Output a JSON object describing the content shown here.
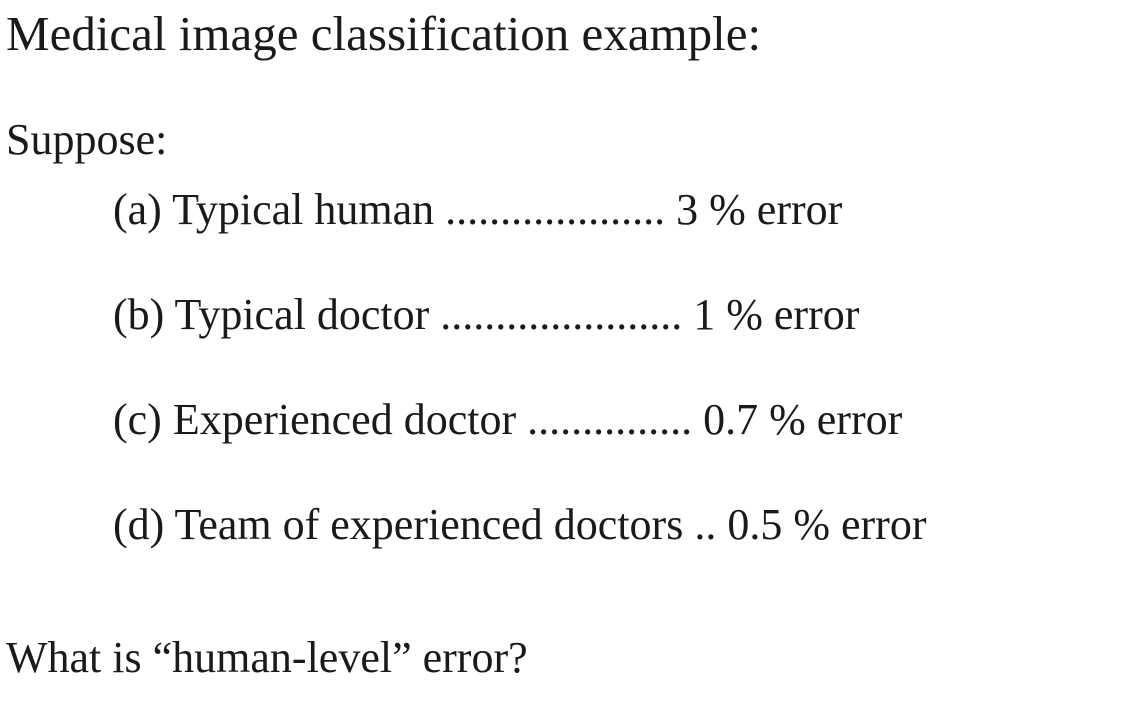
{
  "slide": {
    "title": "Medical image classification example:",
    "intro": "Suppose:",
    "items": [
      {
        "marker": "(a)",
        "label": "Typical human",
        "leader": "....................",
        "value": "3 % error"
      },
      {
        "marker": "(b)",
        "label": "Typical doctor",
        "leader": "......................",
        "value": "1 % error"
      },
      {
        "marker": "(c)",
        "label": "Experienced doctor",
        "leader": "...............",
        "value": "0.7 % error"
      },
      {
        "marker": "(d)",
        "label": "Team of experienced doctors",
        "leader": "..",
        "value": "0.5 % error"
      }
    ],
    "question": "What is “human-level” error?"
  }
}
